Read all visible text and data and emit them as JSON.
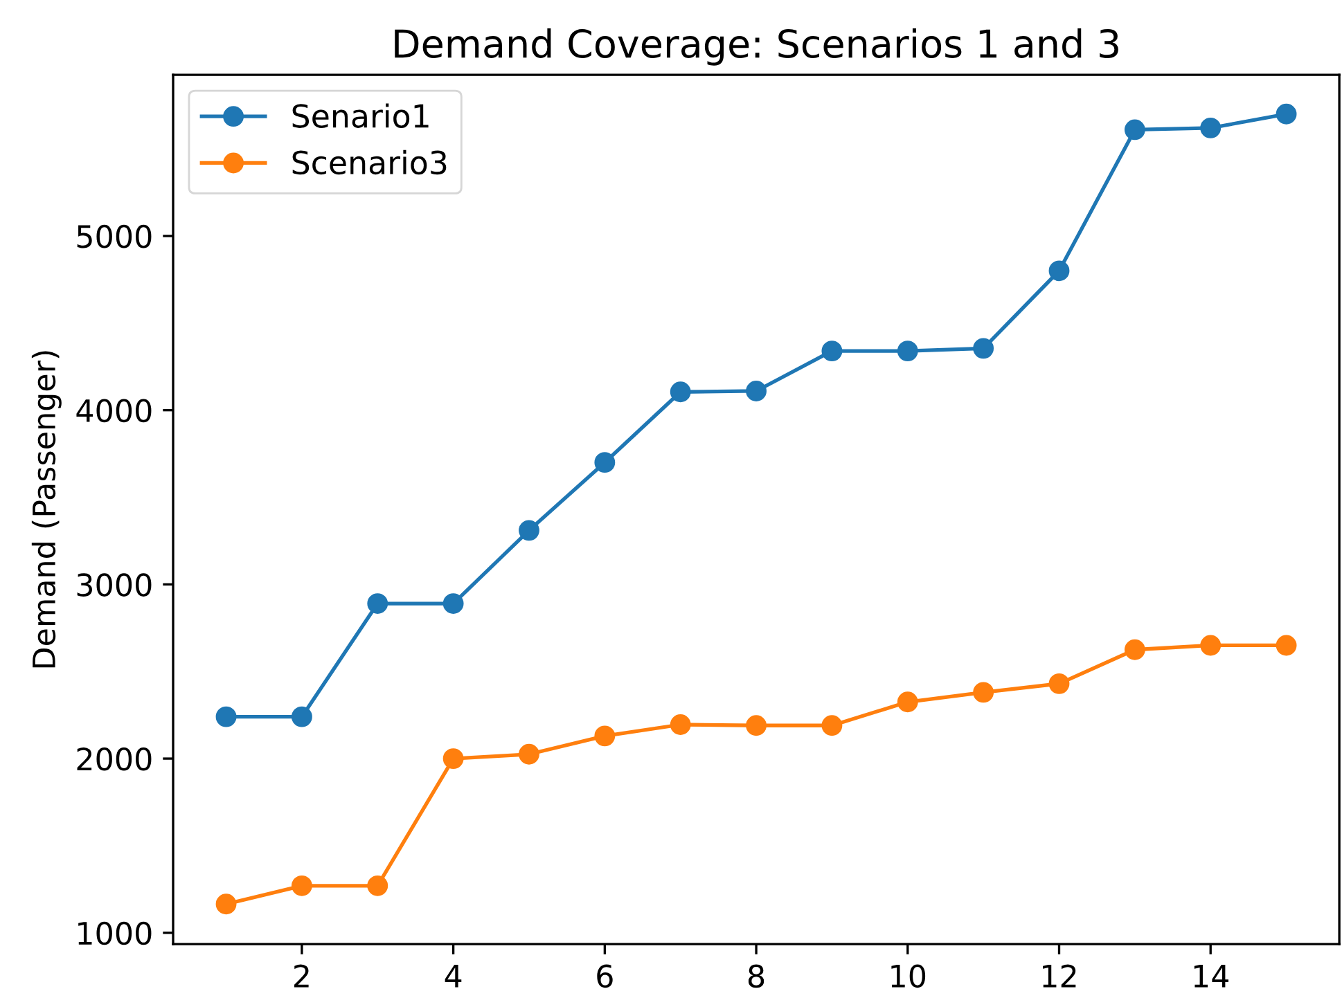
{
  "chart_data": {
    "type": "line",
    "title": "Demand Coverage: Scenarios 1 and 3",
    "ylabel": "Demand (Passenger)",
    "x": [
      1,
      2,
      3,
      4,
      5,
      6,
      7,
      8,
      9,
      10,
      11,
      12,
      13,
      14,
      15
    ],
    "series": [
      {
        "name": "Senario1",
        "color": "#1f77b4",
        "values": [
          2240,
          2240,
          2890,
          2890,
          3310,
          3700,
          4105,
          4110,
          4340,
          4340,
          4355,
          4800,
          5610,
          5620,
          5700
        ]
      },
      {
        "name": "Scenario3",
        "color": "#ff7f0e",
        "values": [
          1165,
          1270,
          1270,
          2000,
          2025,
          2130,
          2195,
          2190,
          2190,
          2325,
          2380,
          2430,
          2625,
          2650,
          2650
        ]
      }
    ],
    "xlim": [
      0.3,
      15.7
    ],
    "xticks": [
      2,
      4,
      6,
      8,
      10,
      12,
      14
    ],
    "ylim": [
      935,
      5925
    ],
    "yticks": [
      1000,
      2000,
      3000,
      4000,
      5000
    ],
    "marker": "circle",
    "line_style": "solid",
    "legend": "top left",
    "grid": false
  }
}
